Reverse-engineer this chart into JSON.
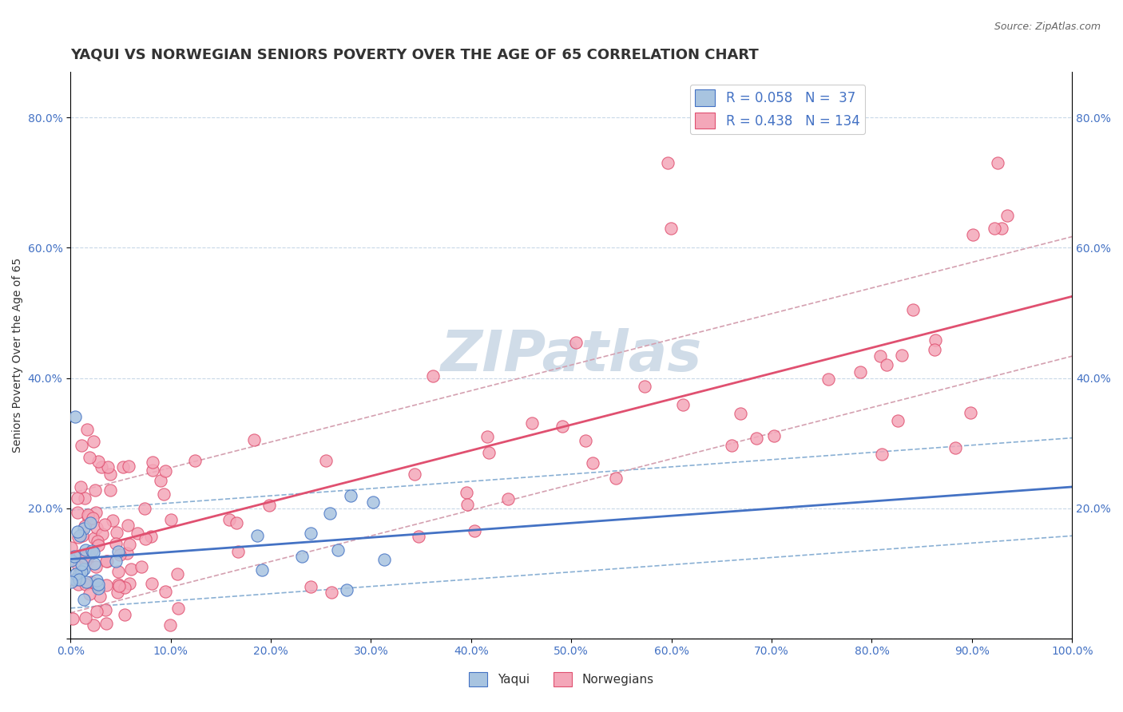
{
  "title": "YAQUI VS NORWEGIAN SENIORS POVERTY OVER THE AGE OF 65 CORRELATION CHART",
  "source_text": "Source: ZipAtlas.com",
  "ylabel": "Seniors Poverty Over the Age of 65",
  "xlabel": "",
  "legend_r1": "R = 0.058",
  "legend_n1": "N =  37",
  "legend_r2": "R = 0.438",
  "legend_n2": "N = 134",
  "yaqui_color": "#a8c4e0",
  "norwegian_color": "#f4a7b9",
  "trend_yaqui_color": "#4472c4",
  "trend_norwegian_color": "#e05070",
  "ci_yaqui_color": "#8ab0d4",
  "ci_norwegian_color": "#d4a0b0",
  "background_color": "#ffffff",
  "grid_color": "#c8d8e8",
  "watermark_color": "#d0dce8",
  "watermark_text": "ZIPatlas",
  "xlim": [
    0.0,
    1.0
  ],
  "ylim": [
    0.0,
    0.87
  ],
  "xticks": [
    0.0,
    0.1,
    0.2,
    0.3,
    0.4,
    0.5,
    0.6,
    0.7,
    0.8,
    0.9,
    1.0
  ],
  "xticklabels": [
    "0.0%",
    "10.0%",
    "20.0%",
    "30.0%",
    "40.0%",
    "50.0%",
    "60.0%",
    "70.0%",
    "80.0%",
    "90.0%",
    "100.0%"
  ],
  "yticks": [
    0.0,
    0.2,
    0.4,
    0.6,
    0.8
  ],
  "yticklabels": [
    "",
    "20.0%",
    "40.0%",
    "60.0%",
    "80.0%"
  ],
  "right_ytick_labels": [
    "",
    "20.0%",
    "40.0%",
    "60.0%",
    "80.0%"
  ],
  "title_fontsize": 13,
  "axis_label_fontsize": 10,
  "tick_fontsize": 10,
  "legend_fontsize": 12,
  "watermark_fontsize": 52
}
